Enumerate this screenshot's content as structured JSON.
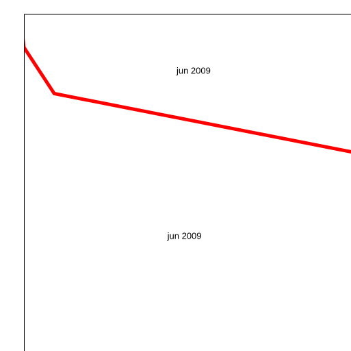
{
  "chart_data": {
    "type": "line",
    "title": "",
    "xlabel": "",
    "ylabel": "",
    "grid": false,
    "legend": "none",
    "series": [
      {
        "color": "#ff0000",
        "points": [
          {
            "x": -0.1,
            "y": 9.0
          },
          {
            "x": 0.0,
            "y": 8.2
          },
          {
            "x": 1.0,
            "y": 6.8
          },
          {
            "x": 11.0,
            "y": 5.0
          }
        ]
      }
    ],
    "xlim": [
      0,
      10.8
    ],
    "ylim": [
      -1,
      9.2
    ],
    "annotations": [
      {
        "text": "jun 2009",
        "x": 5.6,
        "y": 7.4
      },
      {
        "text": "jun 2009",
        "x": 5.3,
        "y": 2.4
      }
    ]
  }
}
